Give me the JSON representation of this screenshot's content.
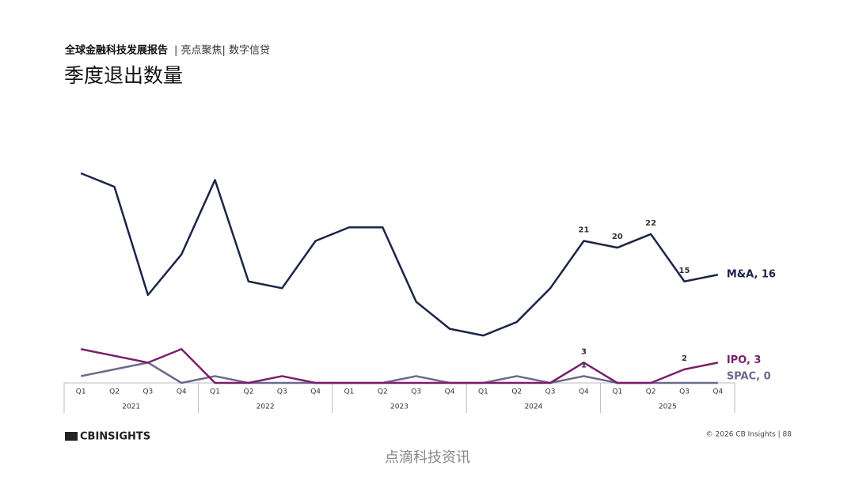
{
  "header": {
    "report": "全球金融科技发展报告",
    "section": "| 亮点聚焦| 数字信贷"
  },
  "chart_data": {
    "type": "line",
    "title": "季度退出数量",
    "categories": [
      "Q1",
      "Q2",
      "Q3",
      "Q4",
      "Q1",
      "Q2",
      "Q3",
      "Q4",
      "Q1",
      "Q2",
      "Q3",
      "Q4",
      "Q1",
      "Q2",
      "Q3",
      "Q4",
      "Q1",
      "Q2",
      "Q3",
      "Q4"
    ],
    "years": [
      "2021",
      "2022",
      "2023",
      "2024",
      "2025"
    ],
    "ylim": [
      0,
      31
    ],
    "series": [
      {
        "name": "M&A",
        "end_label": "M&A, 16",
        "color": "#1b2547",
        "values": [
          31,
          29,
          13,
          19,
          30,
          15,
          14,
          21,
          23,
          23,
          12,
          8,
          7,
          9,
          14,
          21,
          20,
          22,
          15,
          16
        ],
        "value_labels": [
          null,
          null,
          null,
          null,
          null,
          null,
          null,
          null,
          null,
          null,
          null,
          null,
          null,
          null,
          null,
          "21",
          "20",
          "22",
          "15",
          null
        ]
      },
      {
        "name": "IPO",
        "end_label": "IPO, 3",
        "color": "#7a1e6c",
        "values": [
          5,
          4,
          3,
          5,
          0,
          0,
          1,
          0,
          0,
          0,
          0,
          0,
          0,
          0,
          0,
          3,
          0,
          0,
          2,
          3
        ],
        "value_labels": [
          null,
          null,
          null,
          null,
          null,
          null,
          null,
          null,
          null,
          null,
          null,
          null,
          null,
          null,
          null,
          "3",
          null,
          null,
          "2",
          null
        ]
      },
      {
        "name": "SPAC",
        "end_label": "SPAC, 0",
        "color": "#6a6a8c",
        "values": [
          1,
          2,
          3,
          0,
          1,
          0,
          0,
          0,
          0,
          0,
          1,
          0,
          0,
          1,
          0,
          1,
          0,
          0,
          0,
          0
        ],
        "value_labels": [
          null,
          null,
          null,
          null,
          null,
          null,
          null,
          null,
          null,
          null,
          null,
          null,
          null,
          null,
          null,
          "1",
          null,
          null,
          null,
          null
        ]
      }
    ]
  },
  "footer": {
    "logo": "CBINSIGHTS",
    "copyright": "© 2026 CB Insights  |  88",
    "watermark": "点滴科技资讯"
  }
}
